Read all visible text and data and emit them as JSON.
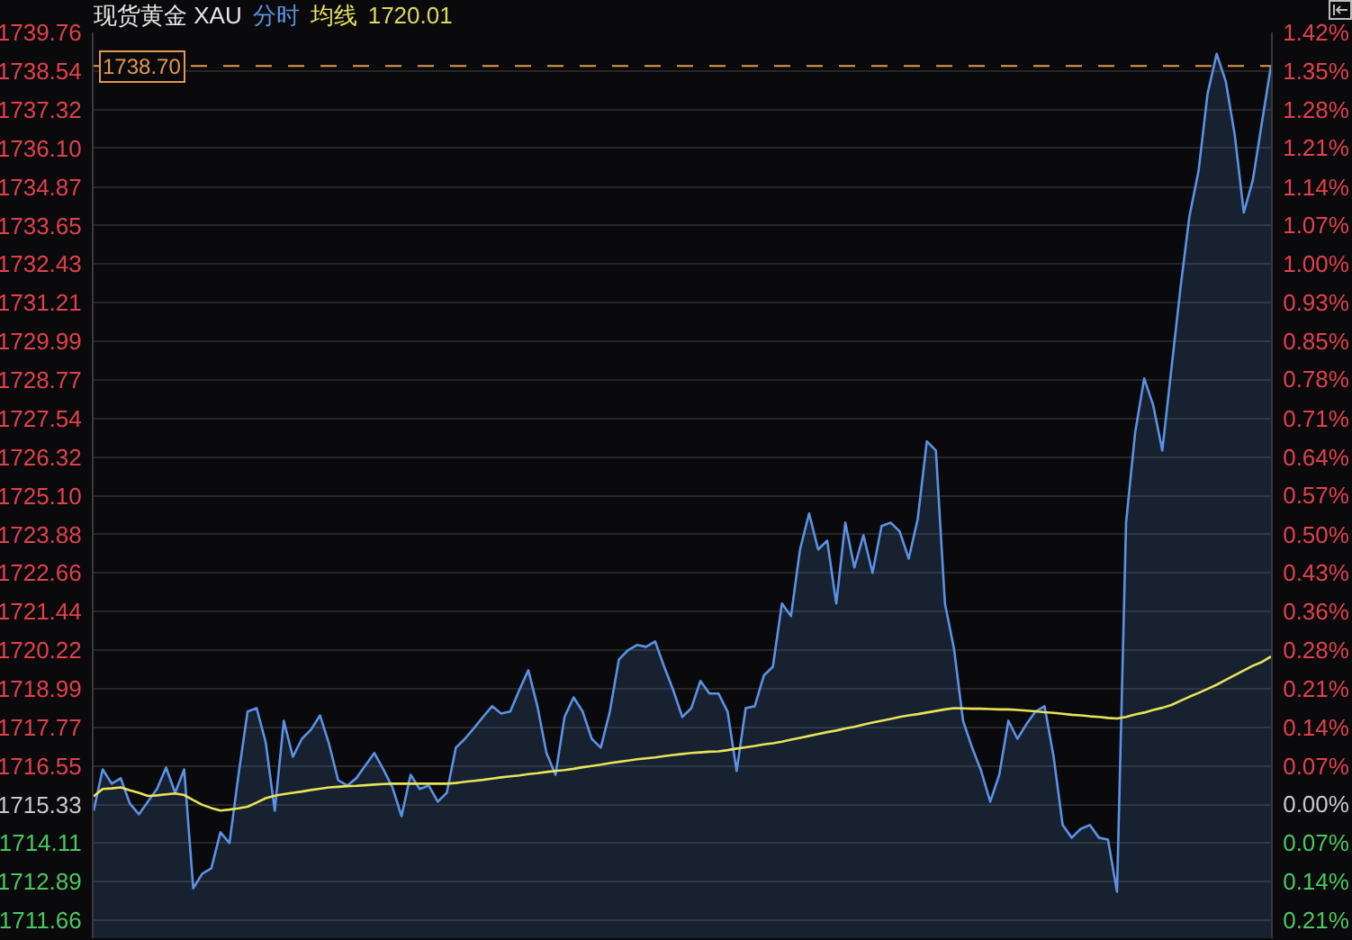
{
  "chart_data": {
    "type": "line",
    "title": "现货黄金 XAU",
    "categories": [
      null,
      null,
      null,
      null,
      null,
      null,
      null,
      null,
      null,
      null,
      null,
      null,
      null,
      null,
      null,
      null,
      null,
      null,
      null,
      null,
      null,
      null,
      null,
      null,
      null,
      null,
      null,
      null,
      null,
      null,
      null,
      null,
      null,
      null,
      null,
      null,
      null,
      null,
      null,
      null,
      null,
      null,
      null,
      null,
      null,
      null,
      null,
      null,
      null,
      null,
      null,
      null,
      null,
      null,
      null,
      null,
      null,
      null,
      null,
      null,
      null,
      null,
      null,
      null,
      null,
      null,
      null,
      null,
      null,
      null,
      null,
      null,
      null,
      null,
      null,
      null,
      null,
      null,
      null,
      null,
      null,
      null,
      null,
      null,
      null,
      null,
      null,
      null,
      null,
      null,
      null,
      null,
      null,
      null,
      null,
      null,
      null,
      null,
      null,
      null,
      null,
      null,
      null,
      null,
      null,
      null,
      null,
      null,
      null,
      null,
      null,
      null,
      null,
      null,
      null,
      null,
      null,
      null,
      null,
      null,
      null,
      null,
      null,
      null,
      null,
      null,
      null,
      null,
      null,
      null,
      null
    ],
    "series": [
      {
        "name": "分时",
        "type": "area",
        "color": "#5b92e5",
        "values": [
          1715.13,
          1716.44,
          1715.99,
          1716.16,
          1715.36,
          1715.02,
          1715.42,
          1715.82,
          1716.5,
          1715.7,
          1716.44,
          1712.68,
          1713.14,
          1713.31,
          1714.45,
          1714.11,
          1716.27,
          1718.27,
          1718.38,
          1717.3,
          1715.13,
          1717.98,
          1716.84,
          1717.41,
          1717.7,
          1718.15,
          1717.24,
          1716.1,
          1715.93,
          1716.16,
          1716.56,
          1716.96,
          1716.44,
          1715.87,
          1714.96,
          1716.27,
          1715.82,
          1715.93,
          1715.42,
          1715.7,
          1717.13,
          1717.41,
          1717.75,
          1718.1,
          1718.44,
          1718.21,
          1718.27,
          1718.95,
          1719.58,
          1718.44,
          1716.96,
          1716.27,
          1718.1,
          1718.72,
          1718.27,
          1717.41,
          1717.13,
          1718.27,
          1719.92,
          1720.21,
          1720.38,
          1720.32,
          1720.49,
          1719.69,
          1718.95,
          1718.1,
          1718.38,
          1719.24,
          1718.84,
          1718.84,
          1718.27,
          1716.39,
          1718.38,
          1718.44,
          1719.41,
          1719.69,
          1721.69,
          1721.29,
          1723.4,
          1724.54,
          1723.4,
          1723.68,
          1721.69,
          1724.25,
          1722.83,
          1723.85,
          1722.66,
          1724.14,
          1724.25,
          1723.97,
          1723.11,
          1724.37,
          1726.82,
          1726.53,
          1721.69,
          1720.26,
          1717.98,
          1717.13,
          1716.39,
          1715.42,
          1716.27,
          1717.98,
          1717.41,
          1717.87,
          1718.27,
          1718.44,
          1716.84,
          1714.68,
          1714.28,
          1714.56,
          1714.68,
          1714.28,
          1714.22,
          1712.57,
          1724.25,
          1727.1,
          1728.81,
          1727.96,
          1726.53,
          1729.1,
          1731.66,
          1733.95,
          1735.37,
          1737.82,
          1739.08,
          1738.22,
          1736.51,
          1734.06,
          1735.09,
          1736.91,
          1738.7
        ]
      },
      {
        "name": "均线",
        "color": "#e8e35a",
        "values": [
          1715.59,
          1715.82,
          1715.84,
          1715.87,
          1715.78,
          1715.7,
          1715.6,
          1715.62,
          1715.65,
          1715.68,
          1715.63,
          1715.47,
          1715.32,
          1715.22,
          1715.14,
          1715.17,
          1715.21,
          1715.26,
          1715.39,
          1715.53,
          1715.61,
          1715.66,
          1715.7,
          1715.74,
          1715.79,
          1715.83,
          1715.87,
          1715.89,
          1715.91,
          1715.92,
          1715.94,
          1715.96,
          1715.98,
          1715.99,
          1715.99,
          1715.99,
          1715.99,
          1715.99,
          1715.99,
          1715.99,
          1716.01,
          1716.05,
          1716.08,
          1716.11,
          1716.15,
          1716.19,
          1716.22,
          1716.25,
          1716.29,
          1716.32,
          1716.36,
          1716.39,
          1716.42,
          1716.46,
          1716.51,
          1716.55,
          1716.59,
          1716.64,
          1716.68,
          1716.72,
          1716.76,
          1716.79,
          1716.82,
          1716.86,
          1716.9,
          1716.93,
          1716.96,
          1716.98,
          1717.0,
          1717.01,
          1717.05,
          1717.1,
          1717.14,
          1717.18,
          1717.23,
          1717.27,
          1717.32,
          1717.38,
          1717.44,
          1717.5,
          1717.56,
          1717.62,
          1717.67,
          1717.74,
          1717.79,
          1717.86,
          1717.92,
          1717.98,
          1718.04,
          1718.1,
          1718.15,
          1718.19,
          1718.24,
          1718.29,
          1718.34,
          1718.38,
          1718.37,
          1718.36,
          1718.36,
          1718.35,
          1718.34,
          1718.34,
          1718.32,
          1718.3,
          1718.28,
          1718.25,
          1718.23,
          1718.2,
          1718.17,
          1718.15,
          1718.12,
          1718.1,
          1718.07,
          1718.05,
          1718.1,
          1718.18,
          1718.24,
          1718.32,
          1718.39,
          1718.48,
          1718.61,
          1718.74,
          1718.86,
          1718.99,
          1719.12,
          1719.27,
          1719.42,
          1719.57,
          1719.72,
          1719.84,
          1720.01
        ]
      }
    ],
    "ylim": [
      1711.1,
      1739.76
    ],
    "yticks": [
      1711.66,
      1712.89,
      1714.11,
      1715.33,
      1716.55,
      1717.77,
      1718.99,
      1720.22,
      1721.44,
      1722.66,
      1723.88,
      {
        "value": 1725.1,
        "label": "1725.10"
      },
      1726.32,
      1727.54,
      1728.77,
      1729.99,
      1731.21,
      1732.43,
      1733.65,
      1734.87,
      {
        "value": 1736.1,
        "label": "1736.10"
      },
      1737.32,
      1738.54,
      1739.76
    ],
    "y2lim": [
      -0.247,
      1.424
    ],
    "y2ticks": [
      {
        "value": -0.214,
        "label": "0.21%"
      },
      {
        "value": -0.142,
        "label": "0.14%"
      },
      {
        "value": -0.071,
        "label": "0.07%"
      },
      {
        "value": 0,
        "label": "0.00%"
      },
      {
        "value": 0.071,
        "label": "0.07%"
      },
      {
        "value": 0.142,
        "label": "0.14%"
      },
      {
        "value": 0.213,
        "label": "0.21%"
      },
      {
        "value": 0.285,
        "label": "0.28%"
      },
      {
        "value": 0.356,
        "label": "0.36%"
      },
      {
        "value": 0.427,
        "label": "0.43%"
      },
      {
        "value": 0.498,
        "label": "0.50%"
      },
      {
        "value": 0.57,
        "label": "0.57%"
      },
      {
        "value": 0.641,
        "label": "0.64%"
      },
      {
        "value": 0.712,
        "label": "0.71%"
      },
      {
        "value": 0.784,
        "label": "0.78%"
      },
      {
        "value": 0.855,
        "label": "0.85%"
      },
      {
        "value": 0.926,
        "label": "0.93%"
      },
      {
        "value": 0.997,
        "label": "1.00%"
      },
      {
        "value": 1.068,
        "label": "1.07%"
      },
      {
        "value": 1.139,
        "label": "1.14%"
      },
      {
        "value": 1.211,
        "label": "1.21%"
      },
      {
        "value": 1.282,
        "label": "1.28%"
      },
      {
        "value": 1.353,
        "label": "1.35%"
      },
      {
        "value": 1.424,
        "label": "1.42%"
      }
    ],
    "ref_lines": [
      {
        "axis": "y",
        "value": 1738.7,
        "label": "1738.70",
        "color": "#e09a4f",
        "line_style": "dashed"
      }
    ],
    "annotations": [
      "1720.01"
    ],
    "grid": "y",
    "legend": "top left",
    "tick_labels": "y"
  }
}
